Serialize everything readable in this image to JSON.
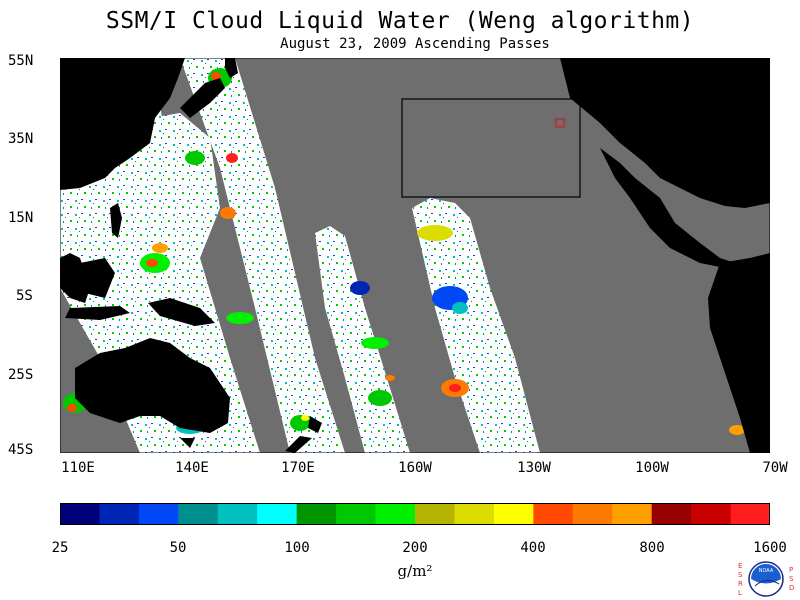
{
  "title": "SSM/I Cloud Liquid Water (Weng algorithm)",
  "subtitle": "August 23, 2009  Ascending Passes",
  "lat_labels": [
    "55N",
    "35N",
    "15N",
    "5S",
    "25S",
    "45S"
  ],
  "lon_labels": [
    "110E",
    "140E",
    "170E",
    "160W",
    "130W",
    "100W",
    "70W"
  ],
  "colorbar": {
    "colors": [
      "#00007a",
      "#0026b5",
      "#0047f5",
      "#008f8f",
      "#00c0c0",
      "#00ffff",
      "#009600",
      "#00c800",
      "#00f000",
      "#b4b400",
      "#dcdc00",
      "#ffff00",
      "#ff4800",
      "#ff7a00",
      "#ffa000",
      "#960000",
      "#c80000",
      "#ff1e1e"
    ],
    "tick_labels": [
      "25",
      "50",
      "100",
      "200",
      "400",
      "800",
      "1600"
    ],
    "unit": "g/m²"
  },
  "logo": {
    "left_letters": "ESRL",
    "right_letters": "PSD",
    "center_text": "NOAA"
  }
}
